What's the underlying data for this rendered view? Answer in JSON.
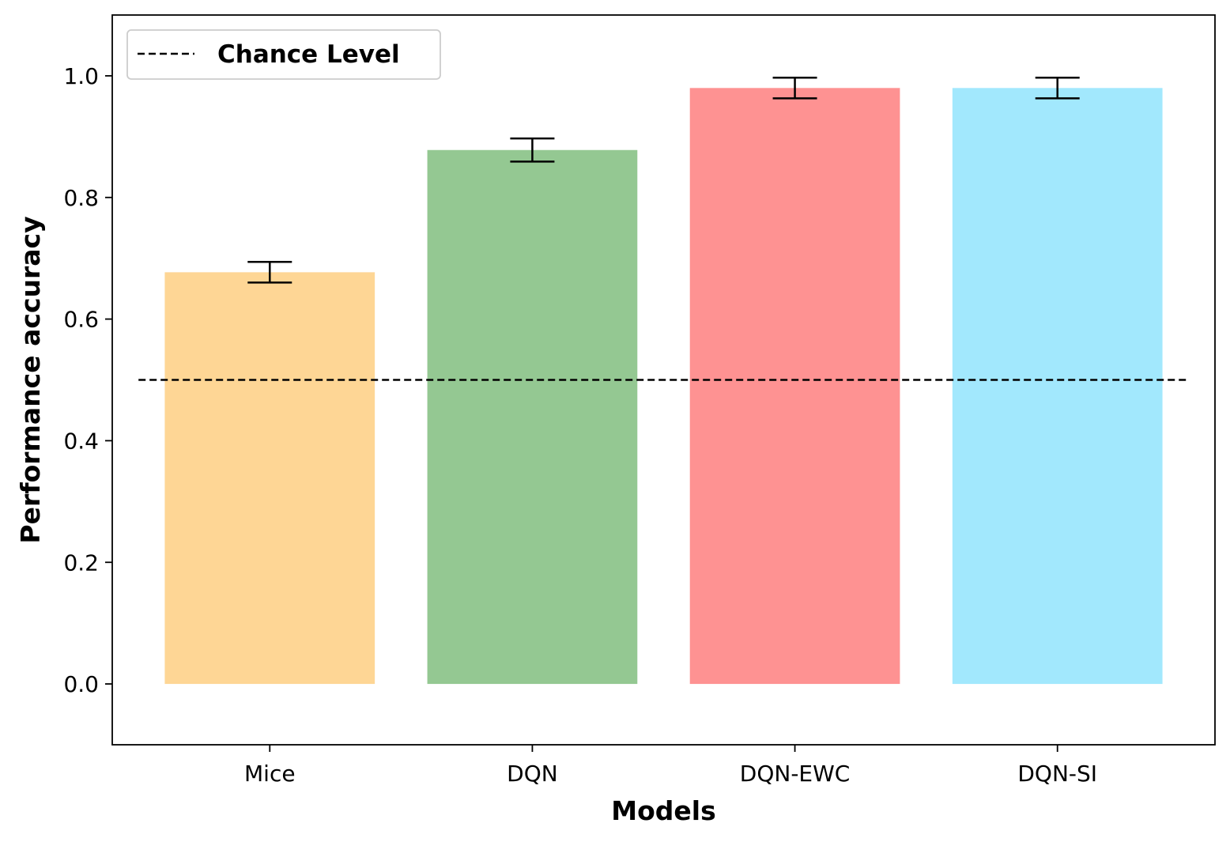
{
  "chart_data": {
    "type": "bar",
    "title": "",
    "xlabel": "Models",
    "ylabel": "Performance accuracy",
    "categories": [
      "Mice",
      "DQN",
      "DQN-EWC",
      "DQN-SI"
    ],
    "values": [
      0.677,
      0.878,
      0.98,
      0.98
    ],
    "errors": [
      0.017,
      0.019,
      0.017,
      0.017
    ],
    "colors": [
      "#FED695",
      "#94C892",
      "#FE9292",
      "#A2E8FD"
    ],
    "ylim": [
      -0.1,
      1.1
    ],
    "yticks": [
      "0.0",
      "0.2",
      "0.4",
      "0.6",
      "0.8",
      "1.0"
    ],
    "reference_line": {
      "label": "Chance Level",
      "value": 0.5,
      "style": "dashed",
      "color": "#000000"
    },
    "legend": {
      "position": "upper-left",
      "entries": [
        "Chance Level"
      ]
    },
    "grid": false
  }
}
